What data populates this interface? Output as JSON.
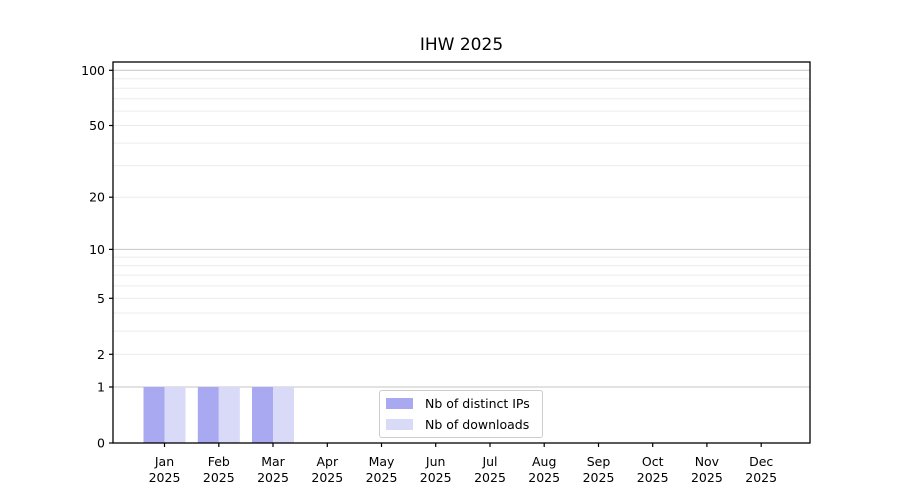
{
  "chart_data": {
    "type": "bar",
    "title": "IHW 2025",
    "xlabel": "",
    "ylabel": "",
    "categories": [
      "Jan 2025",
      "Feb 2025",
      "Mar 2025",
      "Apr 2025",
      "May 2025",
      "Jun 2025",
      "Jul 2025",
      "Aug 2025",
      "Sep 2025",
      "Oct 2025",
      "Nov 2025",
      "Dec 2025"
    ],
    "series": [
      {
        "name": "Nb of distinct IPs",
        "color": "#a9a9f1",
        "values": [
          1,
          1,
          1,
          0,
          0,
          0,
          0,
          0,
          0,
          0,
          0,
          0
        ]
      },
      {
        "name": "Nb of downloads",
        "color": "#d9d9f8",
        "values": [
          1,
          1,
          1,
          0,
          0,
          0,
          0,
          0,
          0,
          0,
          0,
          0
        ]
      }
    ],
    "y_axis": {
      "scale": "log1p",
      "ticks": [
        0,
        1,
        2,
        5,
        10,
        20,
        50,
        100
      ],
      "max": 111,
      "major_gridlines": [
        1,
        10,
        100
      ],
      "minor_gridlines": [
        2,
        3,
        4,
        5,
        6,
        7,
        8,
        9,
        20,
        30,
        40,
        50,
        60,
        70,
        80,
        90
      ]
    },
    "legend": {
      "position": "inside-bottom-center"
    },
    "grid": "horizontal-only"
  },
  "colors": {
    "background": "#ffffff",
    "axis": "#000000",
    "text": "#000000",
    "grid_major": "#c4c4c4",
    "grid_minor": "#ececec",
    "legend_border": "#cccccc"
  }
}
